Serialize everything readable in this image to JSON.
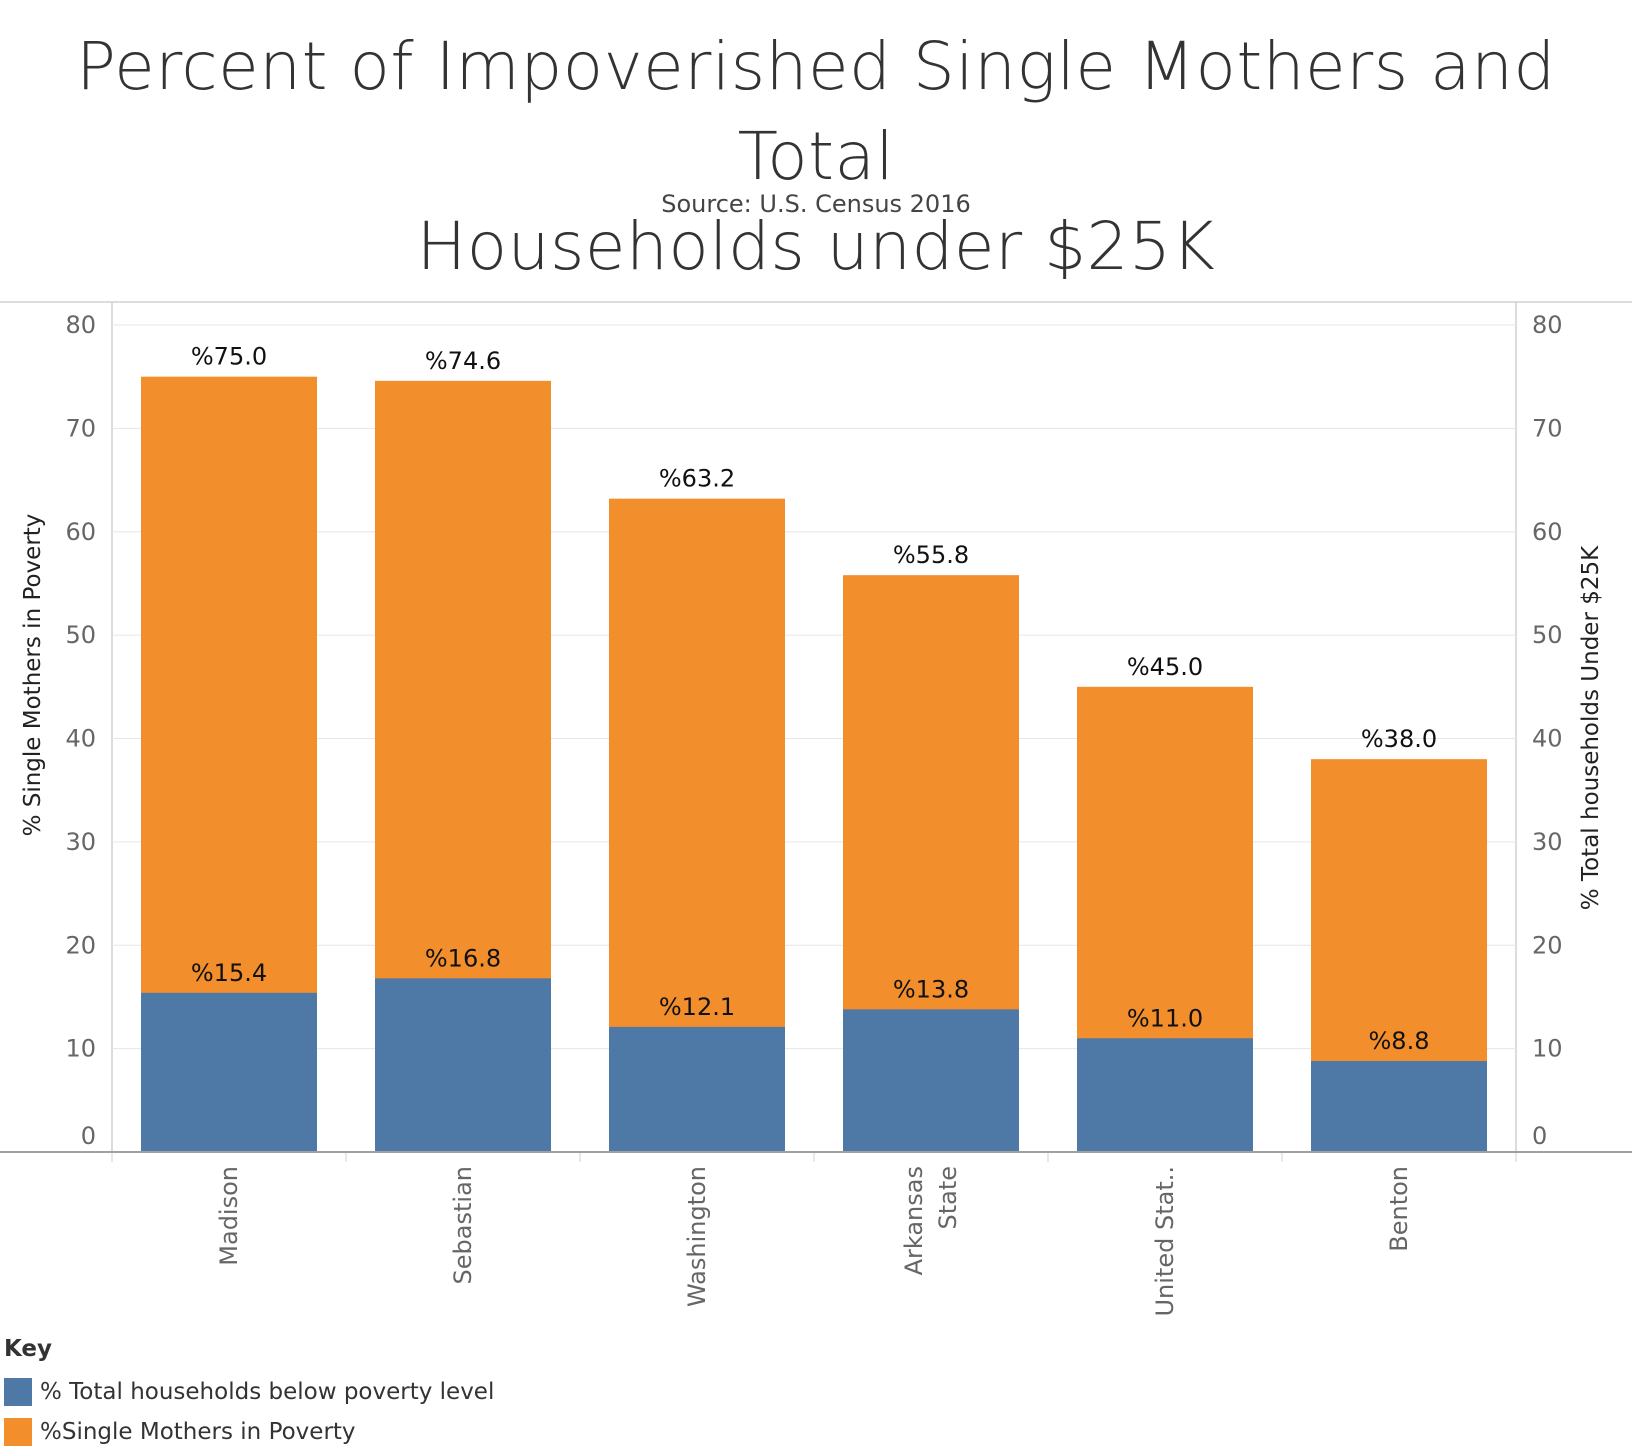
{
  "title": "Percent of Impoverished Single Mothers  and Total Households under $25K",
  "title_lines": [
    "Percent of Impoverished Single Mothers  and Total",
    "Households under $25K"
  ],
  "subtitle": "Source: U.S. Census 2016",
  "colors": {
    "households": "#4e79a7",
    "single_mothers": "#f28e2b",
    "grid": "#e6e6e6",
    "axis": "#bdbdbd",
    "tick_text": "#666666"
  },
  "legend": {
    "title": "Key",
    "items": [
      {
        "label": "% Total households below poverty level",
        "color": "#4e79a7"
      },
      {
        "label": "%Single Mothers in Poverty",
        "color": "#f28e2b"
      }
    ]
  },
  "chart_data": {
    "type": "bar",
    "categories": [
      "Madison",
      "Sebastian",
      "Washington",
      "Arkansas State",
      "United Stat..",
      "Benton"
    ],
    "category_label_lines": [
      [
        "Madison"
      ],
      [
        "Sebastian"
      ],
      [
        "Washington"
      ],
      [
        "Arkansas",
        "State"
      ],
      [
        "United Stat.."
      ],
      [
        "Benton"
      ]
    ],
    "series": [
      {
        "name": "%Single Mothers in Poverty",
        "values": [
          75.0,
          74.6,
          63.2,
          55.8,
          45.0,
          38.0
        ],
        "labels": [
          "%75.0",
          "%74.6",
          "%63.2",
          "%55.8",
          "%45.0",
          "%38.0"
        ],
        "color": "#f28e2b"
      },
      {
        "name": "% Total households below poverty level",
        "values": [
          15.4,
          16.8,
          12.1,
          13.8,
          11.0,
          8.8
        ],
        "labels": [
          "%15.4",
          "%16.8",
          "%12.1",
          "%13.8",
          "%11.0",
          "%8.8"
        ],
        "color": "#4e79a7"
      }
    ],
    "ylabel": "% Single Mothers in Poverty",
    "y2label": "% Total households Under $25K",
    "ylim": [
      0,
      80
    ],
    "yticks": [
      0,
      10,
      20,
      30,
      40,
      50,
      60,
      70,
      80
    ],
    "grid": true,
    "legend_position": "bottom-left"
  }
}
